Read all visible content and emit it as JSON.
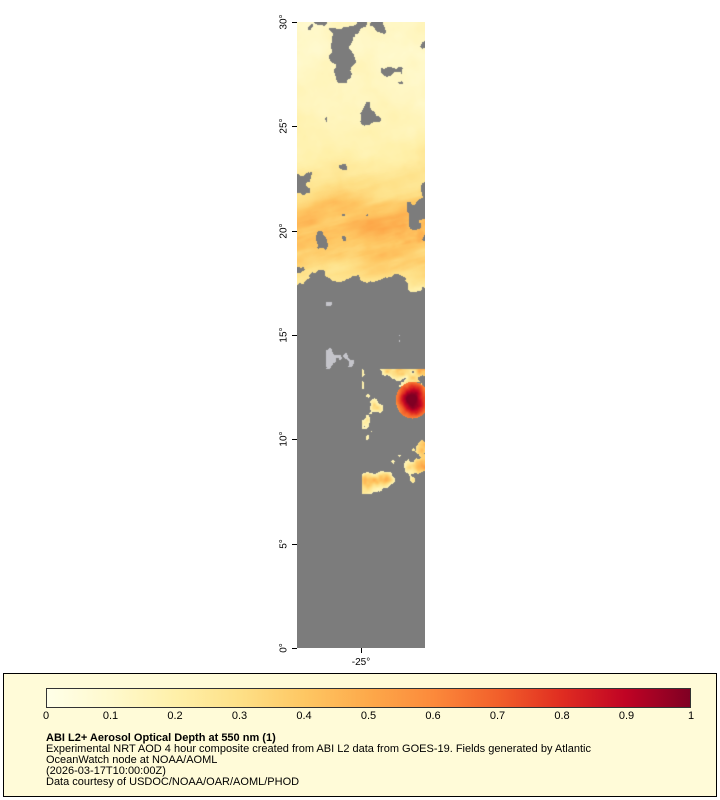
{
  "map": {
    "lat_ticks": [
      {
        "label": "30°",
        "value": 30
      },
      {
        "label": "25°",
        "value": 25
      },
      {
        "label": "20°",
        "value": 20
      },
      {
        "label": "15°",
        "value": 15
      },
      {
        "label": "10°",
        "value": 10
      },
      {
        "label": "5°",
        "value": 5
      },
      {
        "label": "0°",
        "value": 0
      }
    ],
    "lon_ticks": [
      {
        "label": "-25°",
        "frac": 0.5
      }
    ],
    "nodata_color": "#7c7c7c",
    "cloud_color": "#c4c4ca"
  },
  "colorbar": {
    "ticks": [
      "0",
      "0.1",
      "0.2",
      "0.3",
      "0.4",
      "0.5",
      "0.6",
      "0.7",
      "0.8",
      "0.9",
      "1"
    ],
    "colors": [
      "#ffffe8",
      "#fff9cd",
      "#fff0a9",
      "#fee087",
      "#fec763",
      "#fda94a",
      "#fc8a3b",
      "#f2602b",
      "#e02d21",
      "#c00324",
      "#7f0023"
    ],
    "min": 0,
    "max": 1
  },
  "legend": {
    "title": "ABI L2+ Aerosol Optical Depth at 550 nm (1)",
    "lines": [
      "Experimental NRT AOD 4 hour composite created from ABI L2 data from GOES-19. Fields generated by Atlantic",
      "OceanWatch node at NOAA/AOML",
      "(2026-03-17T10:00:00Z)",
      "Data courtesy of USDOC/NOAA/OAR/AOML/PHOD"
    ],
    "background": "#fffbd8"
  }
}
